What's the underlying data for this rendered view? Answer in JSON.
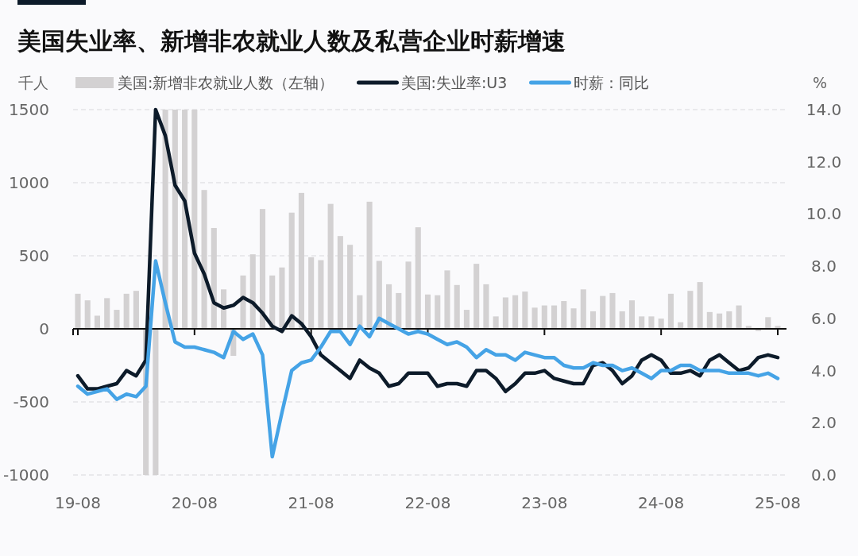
{
  "chart_data": {
    "type": "bar",
    "title": "美国失业率、新增非农就业人数及私营企业时薪增速",
    "ylabel": "千人",
    "y2label": "%",
    "categories": [
      "19-08",
      null,
      null,
      null,
      null,
      null,
      null,
      null,
      null,
      null,
      null,
      null,
      "20-08",
      null,
      null,
      null,
      null,
      null,
      null,
      null,
      null,
      null,
      null,
      null,
      "21-08",
      null,
      null,
      null,
      null,
      null,
      null,
      null,
      null,
      null,
      null,
      null,
      "22-08",
      null,
      null,
      null,
      null,
      null,
      null,
      null,
      null,
      null,
      null,
      null,
      "23-08",
      null,
      null,
      null,
      null,
      null,
      null,
      null,
      null,
      null,
      null,
      null,
      "24-08",
      null,
      null,
      null,
      null,
      null,
      null,
      null,
      null,
      null,
      null,
      null,
      "25-08"
    ],
    "series": [
      {
        "name": "美国:新增非农就业人数（左轴）",
        "color": "#d3d1d2",
        "values": [
          240,
          195,
          90,
          210,
          130,
          240,
          260,
          -1000,
          -1000,
          1500,
          1500,
          1500,
          1500,
          950,
          690,
          270,
          -185,
          365,
          510,
          820,
          365,
          420,
          795,
          930,
          490,
          470,
          855,
          635,
          575,
          230,
          870,
          465,
          305,
          245,
          460,
          695,
          235,
          230,
          400,
          300,
          130,
          445,
          305,
          85,
          215,
          230,
          255,
          145,
          160,
          160,
          190,
          140,
          270,
          120,
          225,
          245,
          120,
          195,
          85,
          85,
          70,
          240,
          45,
          260,
          320,
          115,
          105,
          120,
          160,
          20,
          -15,
          80,
          20
        ]
      },
      {
        "name": "美国:失业率:U3",
        "type": "line",
        "axis": "y2",
        "color": "#0d1b2a",
        "values": [
          3.8,
          3.3,
          3.3,
          3.4,
          3.5,
          4.0,
          3.8,
          4.4,
          14.0,
          13.0,
          11.1,
          10.5,
          8.5,
          7.7,
          6.6,
          6.4,
          6.5,
          6.8,
          6.6,
          6.2,
          5.7,
          5.5,
          6.1,
          5.8,
          5.3,
          4.6,
          4.3,
          4.0,
          3.7,
          4.4,
          4.1,
          3.9,
          3.4,
          3.5,
          3.9,
          3.9,
          3.9,
          3.4,
          3.5,
          3.5,
          3.4,
          4.0,
          4.0,
          3.7,
          3.2,
          3.5,
          3.9,
          3.9,
          4.0,
          3.7,
          3.6,
          3.5,
          3.5,
          4.2,
          4.3,
          4.0,
          3.5,
          3.8,
          4.4,
          4.6,
          4.4,
          3.9,
          3.9,
          4.0,
          3.8,
          4.4,
          4.6,
          4.3,
          4.0,
          4.1,
          4.5,
          4.6,
          4.5
        ]
      },
      {
        "name": "时薪：同比",
        "type": "line",
        "axis": "y2",
        "color": "#45a3e6",
        "values": [
          3.4,
          3.1,
          3.2,
          3.3,
          2.9,
          3.1,
          3.0,
          3.4,
          8.2,
          6.6,
          5.1,
          4.9,
          4.9,
          4.8,
          4.7,
          4.5,
          5.5,
          5.2,
          5.4,
          4.6,
          0.7,
          2.4,
          4.0,
          4.3,
          4.4,
          4.9,
          5.5,
          5.5,
          5.0,
          5.7,
          5.3,
          6.0,
          5.8,
          5.6,
          5.4,
          5.5,
          5.4,
          5.2,
          5.0,
          5.1,
          4.9,
          4.5,
          4.8,
          4.6,
          4.6,
          4.4,
          4.7,
          4.6,
          4.5,
          4.5,
          4.2,
          4.1,
          4.1,
          4.3,
          4.2,
          4.2,
          4.0,
          4.1,
          3.9,
          3.7,
          4.0,
          4.0,
          4.2,
          4.2,
          4.0,
          4.0,
          4.0,
          3.9,
          3.9,
          3.9,
          3.8,
          3.9,
          3.7
        ]
      }
    ],
    "ylim": [
      -1000,
      1500
    ],
    "yticks": [
      -1000,
      -500,
      0,
      500,
      1000,
      1500
    ],
    "y2lim": [
      0,
      14
    ],
    "y2ticks": [
      {
        "value": 0,
        "label": "0.0"
      },
      {
        "value": 2,
        "label": "2.0"
      },
      {
        "value": 4,
        "label": "4.0"
      },
      {
        "value": 6,
        "label": "6.0"
      },
      {
        "value": 8,
        "label": "8.0"
      },
      {
        "value": 10,
        "label": "10.0"
      },
      {
        "value": 12,
        "label": "12.0"
      },
      {
        "value": 14,
        "label": "14.0"
      }
    ],
    "grid": "y",
    "legend": "top",
    "line_style": "solid",
    "marker": "none"
  }
}
